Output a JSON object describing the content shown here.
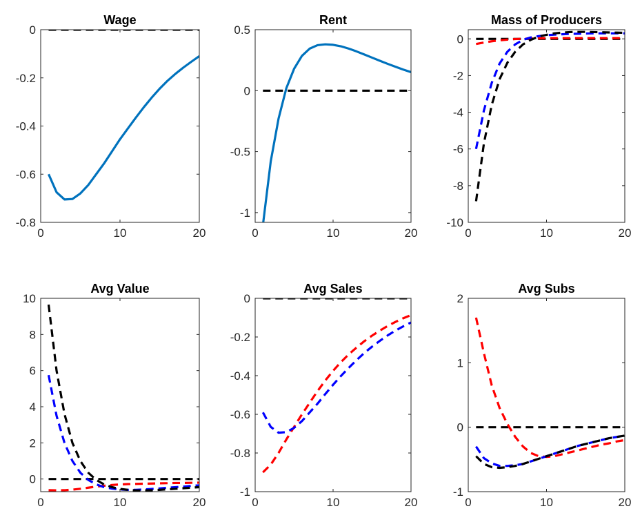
{
  "chart_data": [
    {
      "type": "line",
      "title": "Wage",
      "xlim": [
        0,
        20
      ],
      "ylim": [
        -0.8,
        0
      ],
      "xticks": [
        0,
        10,
        20
      ],
      "yticks": [
        -0.8,
        -0.6,
        -0.4,
        -0.2,
        0
      ],
      "ytick_labels": [
        "-0.8",
        "-0.6",
        "-0.4",
        "-0.2",
        "0"
      ],
      "series": [
        {
          "color": "#000000",
          "style": "dashed",
          "x": [
            1,
            20
          ],
          "y": [
            0,
            0
          ]
        },
        {
          "color": "#0072BD",
          "style": "solid",
          "x": [
            1,
            2,
            3,
            4,
            5,
            6,
            7,
            8,
            9,
            10,
            11,
            12,
            13,
            14,
            15,
            16,
            17,
            18,
            19,
            20
          ],
          "y": [
            -0.6,
            -0.675,
            -0.705,
            -0.703,
            -0.68,
            -0.645,
            -0.6,
            -0.555,
            -0.505,
            -0.455,
            -0.41,
            -0.365,
            -0.322,
            -0.282,
            -0.245,
            -0.212,
            -0.183,
            -0.157,
            -0.133,
            -0.11
          ]
        }
      ]
    },
    {
      "type": "line",
      "title": "Rent",
      "xlim": [
        0,
        20
      ],
      "ylim": [
        -1.08,
        0.5
      ],
      "xticks": [
        0,
        10,
        20
      ],
      "yticks": [
        -1,
        -0.5,
        0,
        0.5
      ],
      "ytick_labels": [
        "-1",
        "-0.5",
        "0",
        "0.5"
      ],
      "series": [
        {
          "color": "#000000",
          "style": "dashed",
          "x": [
            1,
            20
          ],
          "y": [
            0,
            0
          ]
        },
        {
          "color": "#0072BD",
          "style": "solid",
          "x": [
            1,
            2,
            3,
            4,
            5,
            6,
            7,
            8,
            9,
            10,
            11,
            12,
            13,
            14,
            15,
            16,
            17,
            18,
            19,
            20
          ],
          "y": [
            -1.1,
            -0.58,
            -0.23,
            0.02,
            0.18,
            0.285,
            0.345,
            0.373,
            0.38,
            0.376,
            0.364,
            0.345,
            0.322,
            0.297,
            0.271,
            0.245,
            0.22,
            0.196,
            0.173,
            0.152
          ]
        }
      ]
    },
    {
      "type": "line",
      "title": "Mass of Producers",
      "xlim": [
        0,
        20
      ],
      "ylim": [
        -10,
        0.5
      ],
      "xticks": [
        0,
        10,
        20
      ],
      "yticks": [
        -10,
        -8,
        -6,
        -4,
        -2,
        0
      ],
      "ytick_labels": [
        "-10",
        "-8",
        "-6",
        "-4",
        "-2",
        "0"
      ],
      "series": [
        {
          "color": "#000000",
          "style": "dashed",
          "x": [
            1,
            20
          ],
          "y": [
            0,
            0
          ]
        },
        {
          "color": "#FF0000",
          "style": "dashed",
          "x": [
            1,
            2,
            3,
            4,
            5,
            6,
            7,
            8,
            9,
            10,
            11,
            12,
            13,
            14,
            15,
            16,
            17,
            18,
            19,
            20
          ],
          "y": [
            -0.28,
            -0.2,
            -0.13,
            -0.08,
            -0.04,
            -0.01,
            0.01,
            0.02,
            0.03,
            0.035,
            0.04,
            0.04,
            0.04,
            0.04,
            0.04,
            0.04,
            0.04,
            0.04,
            0.04,
            0.04
          ]
        },
        {
          "color": "#0000FF",
          "style": "dashed",
          "x": [
            1,
            2,
            3,
            4,
            5,
            6,
            7,
            8,
            9,
            10,
            11,
            12,
            13,
            14,
            15,
            16,
            17,
            18,
            19,
            20
          ],
          "y": [
            -6.0,
            -3.9,
            -2.4,
            -1.35,
            -0.7,
            -0.3,
            -0.05,
            0.08,
            0.15,
            0.2,
            0.23,
            0.25,
            0.27,
            0.28,
            0.29,
            0.3,
            0.3,
            0.3,
            0.3,
            0.3
          ]
        },
        {
          "color": "#000000",
          "style": "dashed",
          "x": [
            1,
            2,
            3,
            4,
            5,
            6,
            7,
            8,
            9,
            10,
            11,
            12,
            13,
            14,
            15,
            16,
            17,
            18,
            19,
            20
          ],
          "y": [
            -8.85,
            -5.7,
            -3.6,
            -2.2,
            -1.3,
            -0.7,
            -0.3,
            -0.05,
            0.12,
            0.22,
            0.3,
            0.34,
            0.37,
            0.38,
            0.38,
            0.37,
            0.36,
            0.35,
            0.34,
            0.33
          ]
        }
      ]
    },
    {
      "type": "line",
      "title": "Avg Value",
      "xlim": [
        0,
        20
      ],
      "ylim": [
        -0.7,
        10
      ],
      "xticks": [
        0,
        10,
        20
      ],
      "yticks": [
        0,
        2,
        4,
        6,
        8,
        10
      ],
      "ytick_labels": [
        "0",
        "2",
        "4",
        "6",
        "8",
        "10"
      ],
      "series": [
        {
          "color": "#000000",
          "style": "dashed",
          "x": [
            1,
            20
          ],
          "y": [
            0,
            0
          ]
        },
        {
          "color": "#FF0000",
          "style": "dashed",
          "x": [
            1,
            2,
            3,
            4,
            5,
            6,
            7,
            8,
            9,
            10,
            11,
            12,
            13,
            14,
            15,
            16,
            17,
            18,
            19,
            20
          ],
          "y": [
            -0.62,
            -0.63,
            -0.62,
            -0.59,
            -0.54,
            -0.48,
            -0.42,
            -0.37,
            -0.33,
            -0.3,
            -0.28,
            -0.27,
            -0.26,
            -0.25,
            -0.24,
            -0.23,
            -0.22,
            -0.22,
            -0.21,
            -0.2
          ]
        },
        {
          "color": "#0000FF",
          "style": "dashed",
          "x": [
            1,
            2,
            3,
            4,
            5,
            6,
            7,
            8,
            9,
            10,
            11,
            12,
            13,
            14,
            15,
            16,
            17,
            18,
            19,
            20
          ],
          "y": [
            5.75,
            3.5,
            2.0,
            1.0,
            0.35,
            -0.05,
            -0.3,
            -0.45,
            -0.53,
            -0.58,
            -0.6,
            -0.6,
            -0.58,
            -0.55,
            -0.52,
            -0.48,
            -0.45,
            -0.42,
            -0.38,
            -0.35
          ]
        },
        {
          "color": "#000000",
          "style": "dashed",
          "x": [
            1,
            2,
            3,
            4,
            5,
            6,
            7,
            8,
            9,
            10,
            11,
            12,
            13,
            14,
            15,
            16,
            17,
            18,
            19,
            20
          ],
          "y": [
            9.65,
            6.0,
            3.6,
            2.0,
            1.0,
            0.35,
            -0.05,
            -0.3,
            -0.45,
            -0.55,
            -0.6,
            -0.63,
            -0.63,
            -0.62,
            -0.6,
            -0.57,
            -0.54,
            -0.51,
            -0.48,
            -0.45
          ]
        }
      ]
    },
    {
      "type": "line",
      "title": "Avg Sales",
      "xlim": [
        0,
        20
      ],
      "ylim": [
        -1,
        0
      ],
      "xticks": [
        0,
        10,
        20
      ],
      "yticks": [
        -1,
        -0.8,
        -0.6,
        -0.4,
        -0.2,
        0
      ],
      "ytick_labels": [
        "-1",
        "-0.8",
        "-0.6",
        "-0.4",
        "-0.2",
        "0"
      ],
      "series": [
        {
          "color": "#000000",
          "style": "dashed",
          "x": [
            1,
            20
          ],
          "y": [
            0,
            0
          ]
        },
        {
          "color": "#FF0000",
          "style": "dashed",
          "x": [
            1,
            2,
            3,
            4,
            5,
            6,
            7,
            8,
            9,
            10,
            11,
            12,
            13,
            14,
            15,
            16,
            17,
            18,
            19,
            20
          ],
          "y": [
            -0.9,
            -0.86,
            -0.8,
            -0.73,
            -0.665,
            -0.6,
            -0.54,
            -0.48,
            -0.425,
            -0.375,
            -0.33,
            -0.29,
            -0.255,
            -0.222,
            -0.193,
            -0.167,
            -0.143,
            -0.122,
            -0.103,
            -0.087
          ]
        },
        {
          "color": "#0000FF",
          "style": "dashed",
          "x": [
            1,
            2,
            3,
            4,
            5,
            6,
            7,
            8,
            9,
            10,
            11,
            12,
            13,
            14,
            15,
            16,
            17,
            18,
            19,
            20
          ],
          "y": [
            -0.59,
            -0.665,
            -0.695,
            -0.692,
            -0.67,
            -0.635,
            -0.59,
            -0.545,
            -0.495,
            -0.447,
            -0.402,
            -0.36,
            -0.32,
            -0.283,
            -0.25,
            -0.22,
            -0.192,
            -0.167,
            -0.145,
            -0.125
          ]
        }
      ]
    },
    {
      "type": "line",
      "title": "Avg Subs",
      "xlim": [
        0,
        20
      ],
      "ylim": [
        -1,
        2
      ],
      "xticks": [
        0,
        10,
        20
      ],
      "yticks": [
        -1,
        0,
        1,
        2
      ],
      "ytick_labels": [
        "-1",
        "0",
        "1",
        "2"
      ],
      "series": [
        {
          "color": "#000000",
          "style": "dashed",
          "x": [
            1,
            20
          ],
          "y": [
            0,
            0
          ]
        },
        {
          "color": "#FF0000",
          "style": "dashed",
          "x": [
            1,
            2,
            3,
            4,
            5,
            6,
            7,
            8,
            9,
            10,
            11,
            12,
            13,
            14,
            15,
            16,
            17,
            18,
            19,
            20
          ],
          "y": [
            1.7,
            1.15,
            0.65,
            0.3,
            0.05,
            -0.15,
            -0.3,
            -0.4,
            -0.45,
            -0.46,
            -0.45,
            -0.42,
            -0.39,
            -0.36,
            -0.33,
            -0.3,
            -0.27,
            -0.25,
            -0.22,
            -0.2
          ]
        },
        {
          "color": "#0000FF",
          "style": "dashed",
          "x": [
            1,
            2,
            3,
            4,
            5,
            6,
            7,
            8,
            9,
            10,
            11,
            12,
            13,
            14,
            15,
            16,
            17,
            18,
            19,
            20
          ],
          "y": [
            -0.3,
            -0.48,
            -0.56,
            -0.6,
            -0.6,
            -0.59,
            -0.57,
            -0.53,
            -0.49,
            -0.45,
            -0.41,
            -0.37,
            -0.33,
            -0.29,
            -0.26,
            -0.23,
            -0.2,
            -0.17,
            -0.15,
            -0.13
          ]
        },
        {
          "color": "#000000",
          "style": "dashed",
          "x": [
            1,
            2,
            3,
            4,
            5,
            6,
            7,
            8,
            9,
            10,
            11,
            12,
            13,
            14,
            15,
            16,
            17,
            18,
            19,
            20
          ],
          "y": [
            -0.45,
            -0.57,
            -0.62,
            -0.63,
            -0.62,
            -0.6,
            -0.57,
            -0.53,
            -0.49,
            -0.45,
            -0.41,
            -0.37,
            -0.33,
            -0.29,
            -0.26,
            -0.23,
            -0.2,
            -0.17,
            -0.15,
            -0.13
          ]
        }
      ]
    }
  ]
}
